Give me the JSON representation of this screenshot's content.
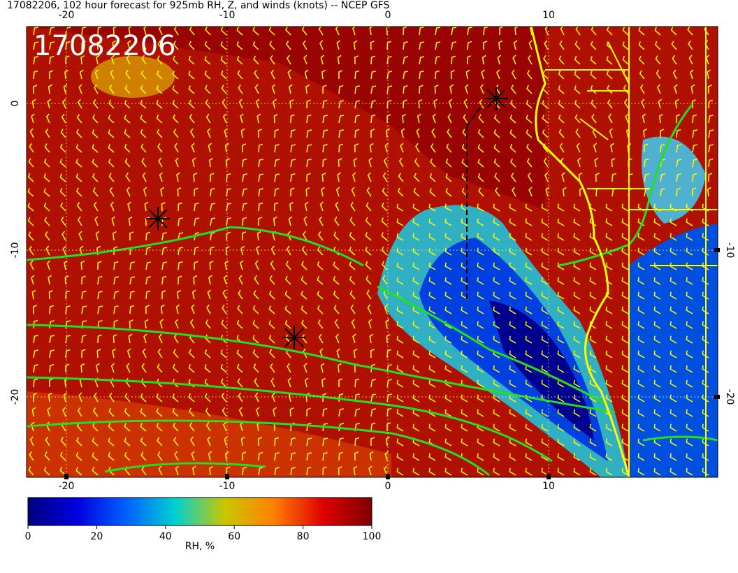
{
  "title": "17082206, 102 hour forecast for 925mb RH, Z, and winds (knots) -- NCEP GFS",
  "stamp": "17082206",
  "map": {
    "top_ticks": [
      -20,
      -10,
      0,
      10
    ],
    "bottom_ticks": [
      -20,
      -10,
      0,
      10
    ],
    "left_ticks": [
      0,
      -10,
      -20
    ],
    "right_ticks": [
      -10,
      -20
    ]
  },
  "colorbar": {
    "ticks": [
      0,
      20,
      40,
      60,
      80,
      100
    ],
    "label": "RH, %",
    "colors": [
      "#00007f",
      "#0000e0",
      "#0060ff",
      "#00d0d0",
      "#c8c800",
      "#ff8000",
      "#e00000",
      "#7f0000"
    ]
  }
}
